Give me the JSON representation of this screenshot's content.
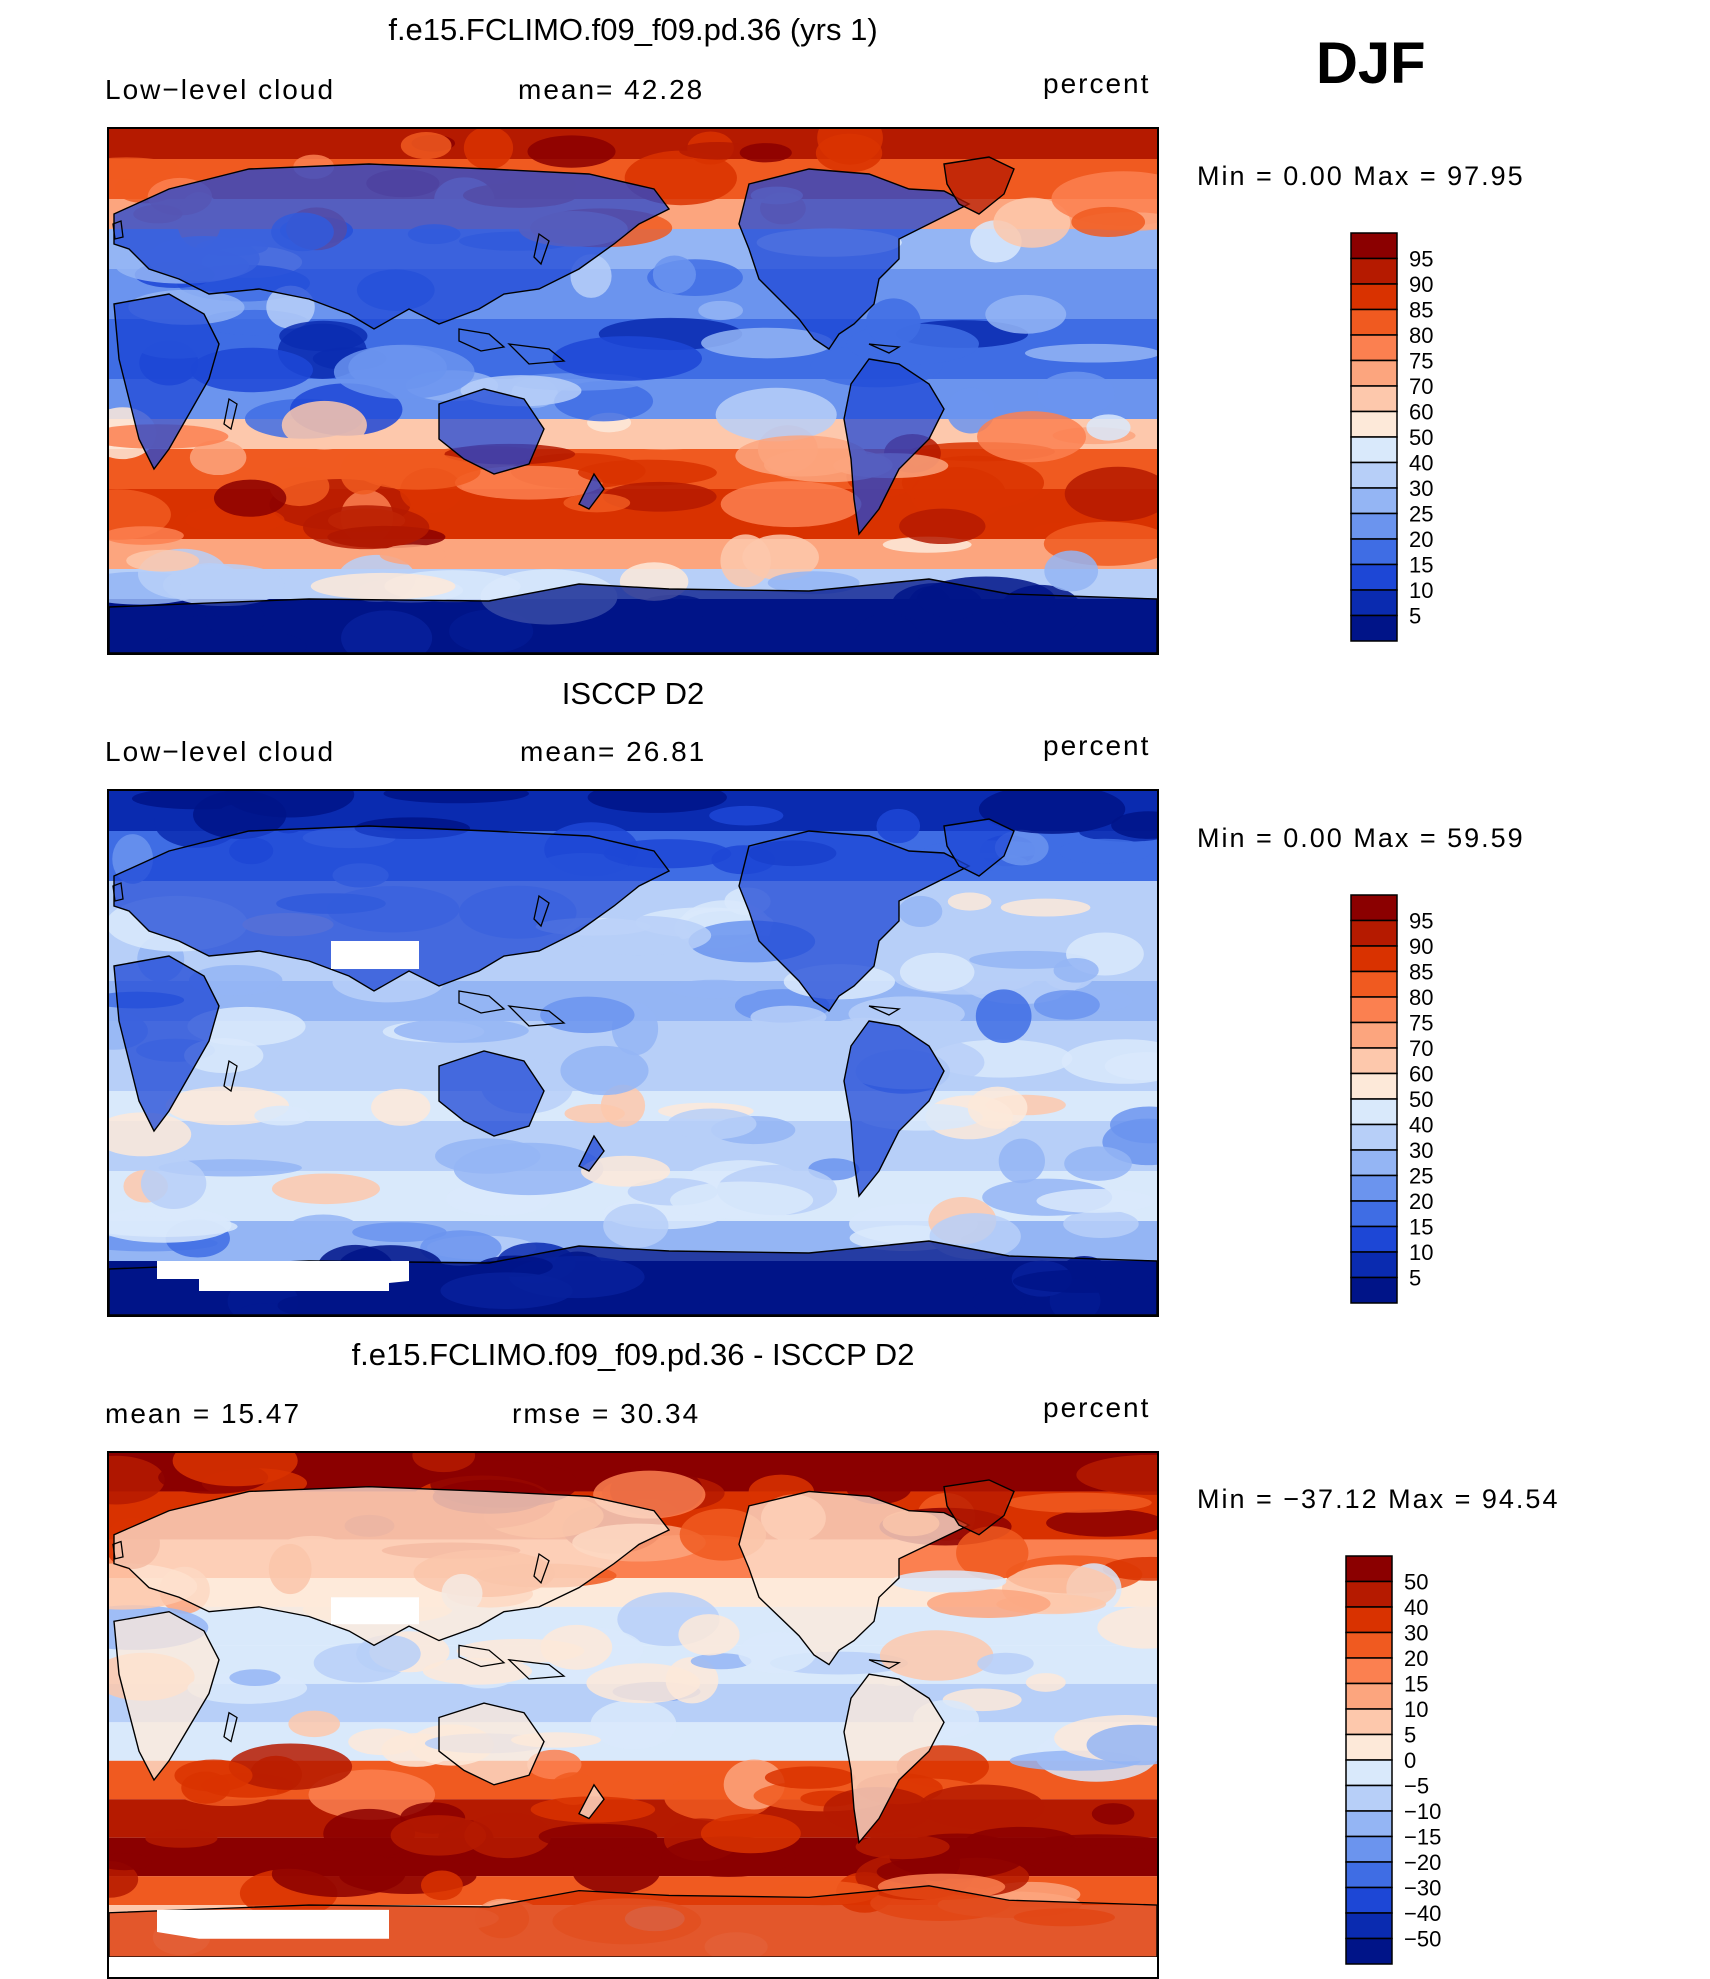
{
  "season": "DJF",
  "panels": [
    {
      "id": "model",
      "title": "f.e15.FCLIMO.f09_f09.pd.36 (yrs 1)",
      "left_label": "Low−level cloud",
      "center_label": "mean=   42.28",
      "right_label": "percent",
      "minmax": "Min  =     0.00  Max  =    97.95",
      "palette": "abs_model"
    },
    {
      "id": "obs",
      "title": "ISCCP D2",
      "left_label": "Low−level cloud",
      "center_label": "mean=   26.81",
      "right_label": "percent",
      "minmax": "Min  =     0.00  Max  =    59.59",
      "palette": "abs_obs"
    },
    {
      "id": "diff",
      "title": "f.e15.FCLIMO.f09_f09.pd.36 - ISCCP D2",
      "left_label": "mean  =     15.47",
      "center_label": "rmse  =     30.34",
      "right_label": "percent",
      "minmax": "Min  = −37.12  Max  =    94.54",
      "palette": "diff"
    }
  ],
  "colorbars": {
    "abs": {
      "labels": [
        "95",
        "90",
        "85",
        "80",
        "75",
        "70",
        "60",
        "50",
        "40",
        "30",
        "25",
        "20",
        "15",
        "10",
        "5"
      ],
      "colors": [
        "#8b0000",
        "#b51a00",
        "#d93200",
        "#f05a20",
        "#fb8050",
        "#fca57e",
        "#fdc8ac",
        "#fde9d9",
        "#d9e9fb",
        "#b7cff8",
        "#94b5f4",
        "#6b94ee",
        "#3f6de4",
        "#1d47d6",
        "#0a2bb0",
        "#001488"
      ]
    },
    "diff": {
      "labels": [
        "50",
        "40",
        "30",
        "20",
        "15",
        "10",
        "5",
        "0",
        "−5",
        "−10",
        "−15",
        "−20",
        "−30",
        "−40",
        "−50"
      ],
      "colors": [
        "#8b0000",
        "#b51a00",
        "#d93200",
        "#f05a20",
        "#fb8050",
        "#fca57e",
        "#fdc8ac",
        "#fde9d9",
        "#d9e9fb",
        "#b7cff8",
        "#94b5f4",
        "#6b94ee",
        "#3f6de4",
        "#1d47d6",
        "#0a2bb0",
        "#001488"
      ]
    }
  },
  "chart_data": [
    {
      "type": "heatmap",
      "title": "f.e15.FCLIMO.f09_f09.pd.36 (yrs 1)",
      "variable": "Low-level cloud",
      "units": "percent",
      "season": "DJF",
      "mean": 42.28,
      "min": 0.0,
      "max": 97.95,
      "contour_levels": [
        5,
        10,
        15,
        20,
        25,
        30,
        40,
        50,
        60,
        70,
        75,
        80,
        85,
        90,
        95
      ]
    },
    {
      "type": "heatmap",
      "title": "ISCCP D2",
      "variable": "Low-level cloud",
      "units": "percent",
      "season": "DJF",
      "mean": 26.81,
      "min": 0.0,
      "max": 59.59,
      "contour_levels": [
        5,
        10,
        15,
        20,
        25,
        30,
        40,
        50,
        60,
        70,
        75,
        80,
        85,
        90,
        95
      ]
    },
    {
      "type": "heatmap",
      "title": "f.e15.FCLIMO.f09_f09.pd.36 - ISCCP D2",
      "units": "percent",
      "season": "DJF",
      "mean": 15.47,
      "rmse": 30.34,
      "min": -37.12,
      "max": 94.54,
      "contour_levels": [
        -50,
        -40,
        -30,
        -20,
        -15,
        -10,
        -5,
        0,
        5,
        10,
        15,
        20,
        30,
        40,
        50
      ]
    }
  ]
}
